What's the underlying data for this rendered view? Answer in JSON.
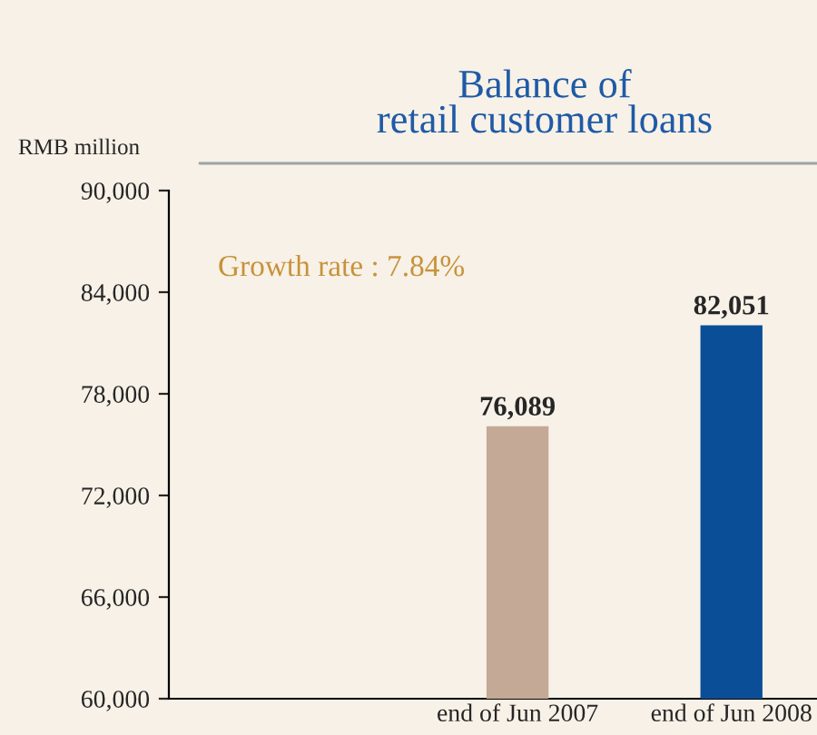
{
  "chart_data": {
    "type": "bar",
    "title": "Balance of\nretail customer loans",
    "ylabel": "RMB million",
    "categories": [
      null,
      "end of Jun 2007",
      "end of Jun 2008"
    ],
    "values": [
      null,
      76089,
      82051
    ],
    "colors": [
      null,
      "#c4a996",
      "#0b4e98"
    ],
    "ylim": [
      60000,
      90000
    ],
    "yticks": [
      {
        "value": 60000,
        "label": "60,000"
      },
      {
        "value": 66000,
        "label": "66,000"
      },
      {
        "value": 72000,
        "label": "72,000"
      },
      {
        "value": 78000,
        "label": "78,000"
      },
      {
        "value": 84000,
        "label": "84,000"
      },
      {
        "value": 90000,
        "label": "90,000"
      }
    ],
    "value_labels": [
      null,
      "76,089",
      "82,051"
    ],
    "grid": false,
    "legend": false,
    "annotations": [
      "Growth rate : 7.84%"
    ]
  }
}
